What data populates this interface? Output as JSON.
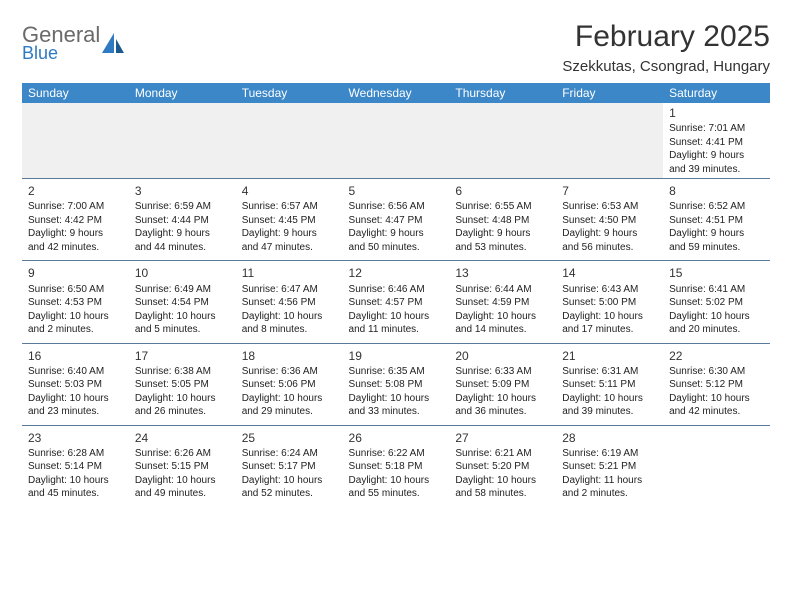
{
  "logo": {
    "word1": "General",
    "word2": "Blue"
  },
  "title": "February 2025",
  "location": "Szekkutas, Csongrad, Hungary",
  "colors": {
    "header_bg": "#3b87c8",
    "header_text": "#ffffff",
    "rule": "#5a7a9a",
    "text": "#222222",
    "logo_gray": "#6a6a6a",
    "logo_blue": "#2f7ac0"
  },
  "weekdays": [
    "Sunday",
    "Monday",
    "Tuesday",
    "Wednesday",
    "Thursday",
    "Friday",
    "Saturday"
  ],
  "weeks": [
    [
      null,
      null,
      null,
      null,
      null,
      null,
      {
        "d": "1",
        "sr": "Sunrise: 7:01 AM",
        "ss": "Sunset: 4:41 PM",
        "dl1": "Daylight: 9 hours",
        "dl2": "and 39 minutes."
      }
    ],
    [
      {
        "d": "2",
        "sr": "Sunrise: 7:00 AM",
        "ss": "Sunset: 4:42 PM",
        "dl1": "Daylight: 9 hours",
        "dl2": "and 42 minutes."
      },
      {
        "d": "3",
        "sr": "Sunrise: 6:59 AM",
        "ss": "Sunset: 4:44 PM",
        "dl1": "Daylight: 9 hours",
        "dl2": "and 44 minutes."
      },
      {
        "d": "4",
        "sr": "Sunrise: 6:57 AM",
        "ss": "Sunset: 4:45 PM",
        "dl1": "Daylight: 9 hours",
        "dl2": "and 47 minutes."
      },
      {
        "d": "5",
        "sr": "Sunrise: 6:56 AM",
        "ss": "Sunset: 4:47 PM",
        "dl1": "Daylight: 9 hours",
        "dl2": "and 50 minutes."
      },
      {
        "d": "6",
        "sr": "Sunrise: 6:55 AM",
        "ss": "Sunset: 4:48 PM",
        "dl1": "Daylight: 9 hours",
        "dl2": "and 53 minutes."
      },
      {
        "d": "7",
        "sr": "Sunrise: 6:53 AM",
        "ss": "Sunset: 4:50 PM",
        "dl1": "Daylight: 9 hours",
        "dl2": "and 56 minutes."
      },
      {
        "d": "8",
        "sr": "Sunrise: 6:52 AM",
        "ss": "Sunset: 4:51 PM",
        "dl1": "Daylight: 9 hours",
        "dl2": "and 59 minutes."
      }
    ],
    [
      {
        "d": "9",
        "sr": "Sunrise: 6:50 AM",
        "ss": "Sunset: 4:53 PM",
        "dl1": "Daylight: 10 hours",
        "dl2": "and 2 minutes."
      },
      {
        "d": "10",
        "sr": "Sunrise: 6:49 AM",
        "ss": "Sunset: 4:54 PM",
        "dl1": "Daylight: 10 hours",
        "dl2": "and 5 minutes."
      },
      {
        "d": "11",
        "sr": "Sunrise: 6:47 AM",
        "ss": "Sunset: 4:56 PM",
        "dl1": "Daylight: 10 hours",
        "dl2": "and 8 minutes."
      },
      {
        "d": "12",
        "sr": "Sunrise: 6:46 AM",
        "ss": "Sunset: 4:57 PM",
        "dl1": "Daylight: 10 hours",
        "dl2": "and 11 minutes."
      },
      {
        "d": "13",
        "sr": "Sunrise: 6:44 AM",
        "ss": "Sunset: 4:59 PM",
        "dl1": "Daylight: 10 hours",
        "dl2": "and 14 minutes."
      },
      {
        "d": "14",
        "sr": "Sunrise: 6:43 AM",
        "ss": "Sunset: 5:00 PM",
        "dl1": "Daylight: 10 hours",
        "dl2": "and 17 minutes."
      },
      {
        "d": "15",
        "sr": "Sunrise: 6:41 AM",
        "ss": "Sunset: 5:02 PM",
        "dl1": "Daylight: 10 hours",
        "dl2": "and 20 minutes."
      }
    ],
    [
      {
        "d": "16",
        "sr": "Sunrise: 6:40 AM",
        "ss": "Sunset: 5:03 PM",
        "dl1": "Daylight: 10 hours",
        "dl2": "and 23 minutes."
      },
      {
        "d": "17",
        "sr": "Sunrise: 6:38 AM",
        "ss": "Sunset: 5:05 PM",
        "dl1": "Daylight: 10 hours",
        "dl2": "and 26 minutes."
      },
      {
        "d": "18",
        "sr": "Sunrise: 6:36 AM",
        "ss": "Sunset: 5:06 PM",
        "dl1": "Daylight: 10 hours",
        "dl2": "and 29 minutes."
      },
      {
        "d": "19",
        "sr": "Sunrise: 6:35 AM",
        "ss": "Sunset: 5:08 PM",
        "dl1": "Daylight: 10 hours",
        "dl2": "and 33 minutes."
      },
      {
        "d": "20",
        "sr": "Sunrise: 6:33 AM",
        "ss": "Sunset: 5:09 PM",
        "dl1": "Daylight: 10 hours",
        "dl2": "and 36 minutes."
      },
      {
        "d": "21",
        "sr": "Sunrise: 6:31 AM",
        "ss": "Sunset: 5:11 PM",
        "dl1": "Daylight: 10 hours",
        "dl2": "and 39 minutes."
      },
      {
        "d": "22",
        "sr": "Sunrise: 6:30 AM",
        "ss": "Sunset: 5:12 PM",
        "dl1": "Daylight: 10 hours",
        "dl2": "and 42 minutes."
      }
    ],
    [
      {
        "d": "23",
        "sr": "Sunrise: 6:28 AM",
        "ss": "Sunset: 5:14 PM",
        "dl1": "Daylight: 10 hours",
        "dl2": "and 45 minutes."
      },
      {
        "d": "24",
        "sr": "Sunrise: 6:26 AM",
        "ss": "Sunset: 5:15 PM",
        "dl1": "Daylight: 10 hours",
        "dl2": "and 49 minutes."
      },
      {
        "d": "25",
        "sr": "Sunrise: 6:24 AM",
        "ss": "Sunset: 5:17 PM",
        "dl1": "Daylight: 10 hours",
        "dl2": "and 52 minutes."
      },
      {
        "d": "26",
        "sr": "Sunrise: 6:22 AM",
        "ss": "Sunset: 5:18 PM",
        "dl1": "Daylight: 10 hours",
        "dl2": "and 55 minutes."
      },
      {
        "d": "27",
        "sr": "Sunrise: 6:21 AM",
        "ss": "Sunset: 5:20 PM",
        "dl1": "Daylight: 10 hours",
        "dl2": "and 58 minutes."
      },
      {
        "d": "28",
        "sr": "Sunrise: 6:19 AM",
        "ss": "Sunset: 5:21 PM",
        "dl1": "Daylight: 11 hours",
        "dl2": "and 2 minutes."
      },
      null
    ]
  ]
}
